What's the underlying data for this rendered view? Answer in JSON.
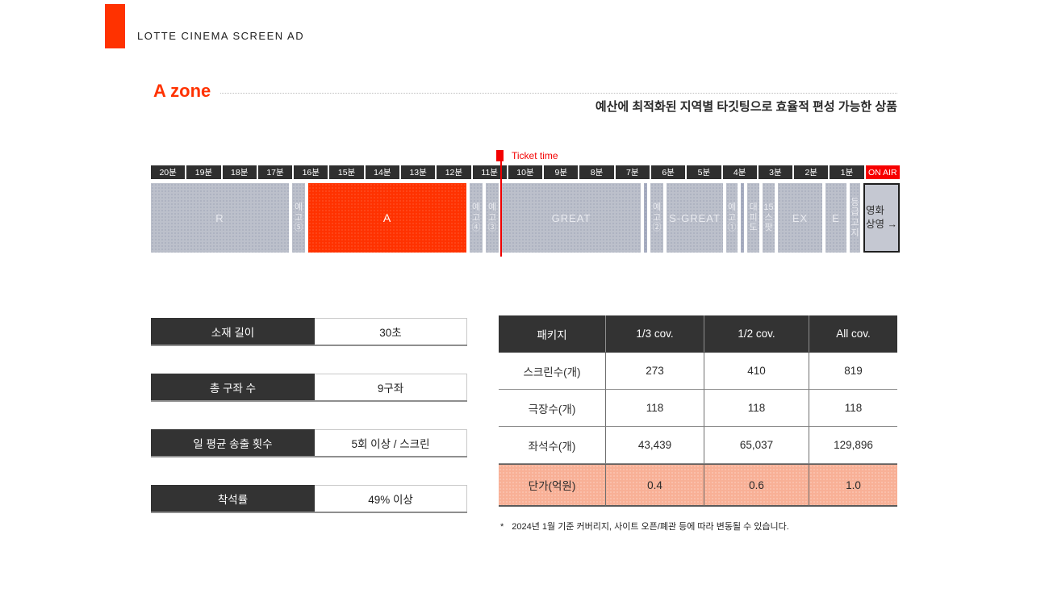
{
  "page": {
    "brand": "LOTTE CINEMA SCREEN AD",
    "title": "A zone",
    "subtitle": "예산에 최적화된 지역별 타깃팅으로 효율적 편성 가능한 상품"
  },
  "colors": {
    "accent": "#FF3200",
    "onair_red": "#F70000",
    "ticket_red": "#F30000",
    "block_gray": "#BCC0CB",
    "dark_header": "#333333",
    "price_row_bg": "#F8B096"
  },
  "timeline": {
    "ticket_time_label": "Ticket time",
    "onair_label": "ON AIR",
    "minutes": [
      "20분",
      "19분",
      "18분",
      "17분",
      "16분",
      "15분",
      "14분",
      "13분",
      "12분",
      "11분",
      "10분",
      "9분",
      "8분",
      "7분",
      "6분",
      "5분",
      "4분",
      "3분",
      "2분",
      "1분"
    ],
    "blocks": [
      {
        "label": "R",
        "kind": "gray",
        "width": 171
      },
      {
        "label": "예고⑤",
        "kind": "vertical",
        "width": 16
      },
      {
        "label": "A",
        "kind": "accent",
        "width": 196
      },
      {
        "label": "예고④",
        "kind": "vertical",
        "width": 16
      },
      {
        "label": "예고③",
        "kind": "vertical",
        "width": 16
      },
      {
        "label": "GREAT",
        "kind": "gray",
        "width": 172
      },
      {
        "label": "",
        "kind": "divider",
        "width": 4
      },
      {
        "label": "예고②",
        "kind": "vertical",
        "width": 16
      },
      {
        "label": "S-GREAT",
        "kind": "gray",
        "width": 70
      },
      {
        "label": "예고①",
        "kind": "vertical",
        "width": 14
      },
      {
        "label": "",
        "kind": "divider",
        "width": 4
      },
      {
        "label": "대피도",
        "kind": "vertical",
        "width": 15
      },
      {
        "label": "15스팟",
        "kind": "vertical",
        "width": 15
      },
      {
        "label": "EX",
        "kind": "gray",
        "width": 55
      },
      {
        "label": "E",
        "kind": "gray",
        "width": 26
      },
      {
        "label": "등급고지",
        "kind": "vertical",
        "width": 13
      },
      {
        "label": "영화\n상영 →",
        "kind": "screening",
        "width": 45
      }
    ]
  },
  "stats": [
    {
      "label": "소재 길이",
      "value": "30초"
    },
    {
      "label": "총 구좌 수",
      "value": "9구좌"
    },
    {
      "label": "일 평균 송출 횟수",
      "value": "5회 이상 / 스크린"
    },
    {
      "label": "착석률",
      "value": "49% 이상"
    }
  ],
  "table": {
    "headers": [
      "패키지",
      "1/3 cov.",
      "1/2 cov.",
      "All cov."
    ],
    "rows": [
      {
        "label": "스크린수(개)",
        "values": [
          "273",
          "410",
          "819"
        ],
        "highlight": false
      },
      {
        "label": "극장수(개)",
        "values": [
          "118",
          "118",
          "118"
        ],
        "highlight": false
      },
      {
        "label": "좌석수(개)",
        "values": [
          "43,439",
          "65,037",
          "129,896"
        ],
        "highlight": false
      },
      {
        "label": "단가(억원)",
        "values": [
          "0.4",
          "0.6",
          "1.0"
        ],
        "highlight": true
      }
    ],
    "footnote_mark": "*",
    "footnote": "2024년 1월 기준 커버리지, 사이트 오픈/폐관 등에 따라 변동될 수 있습니다."
  }
}
